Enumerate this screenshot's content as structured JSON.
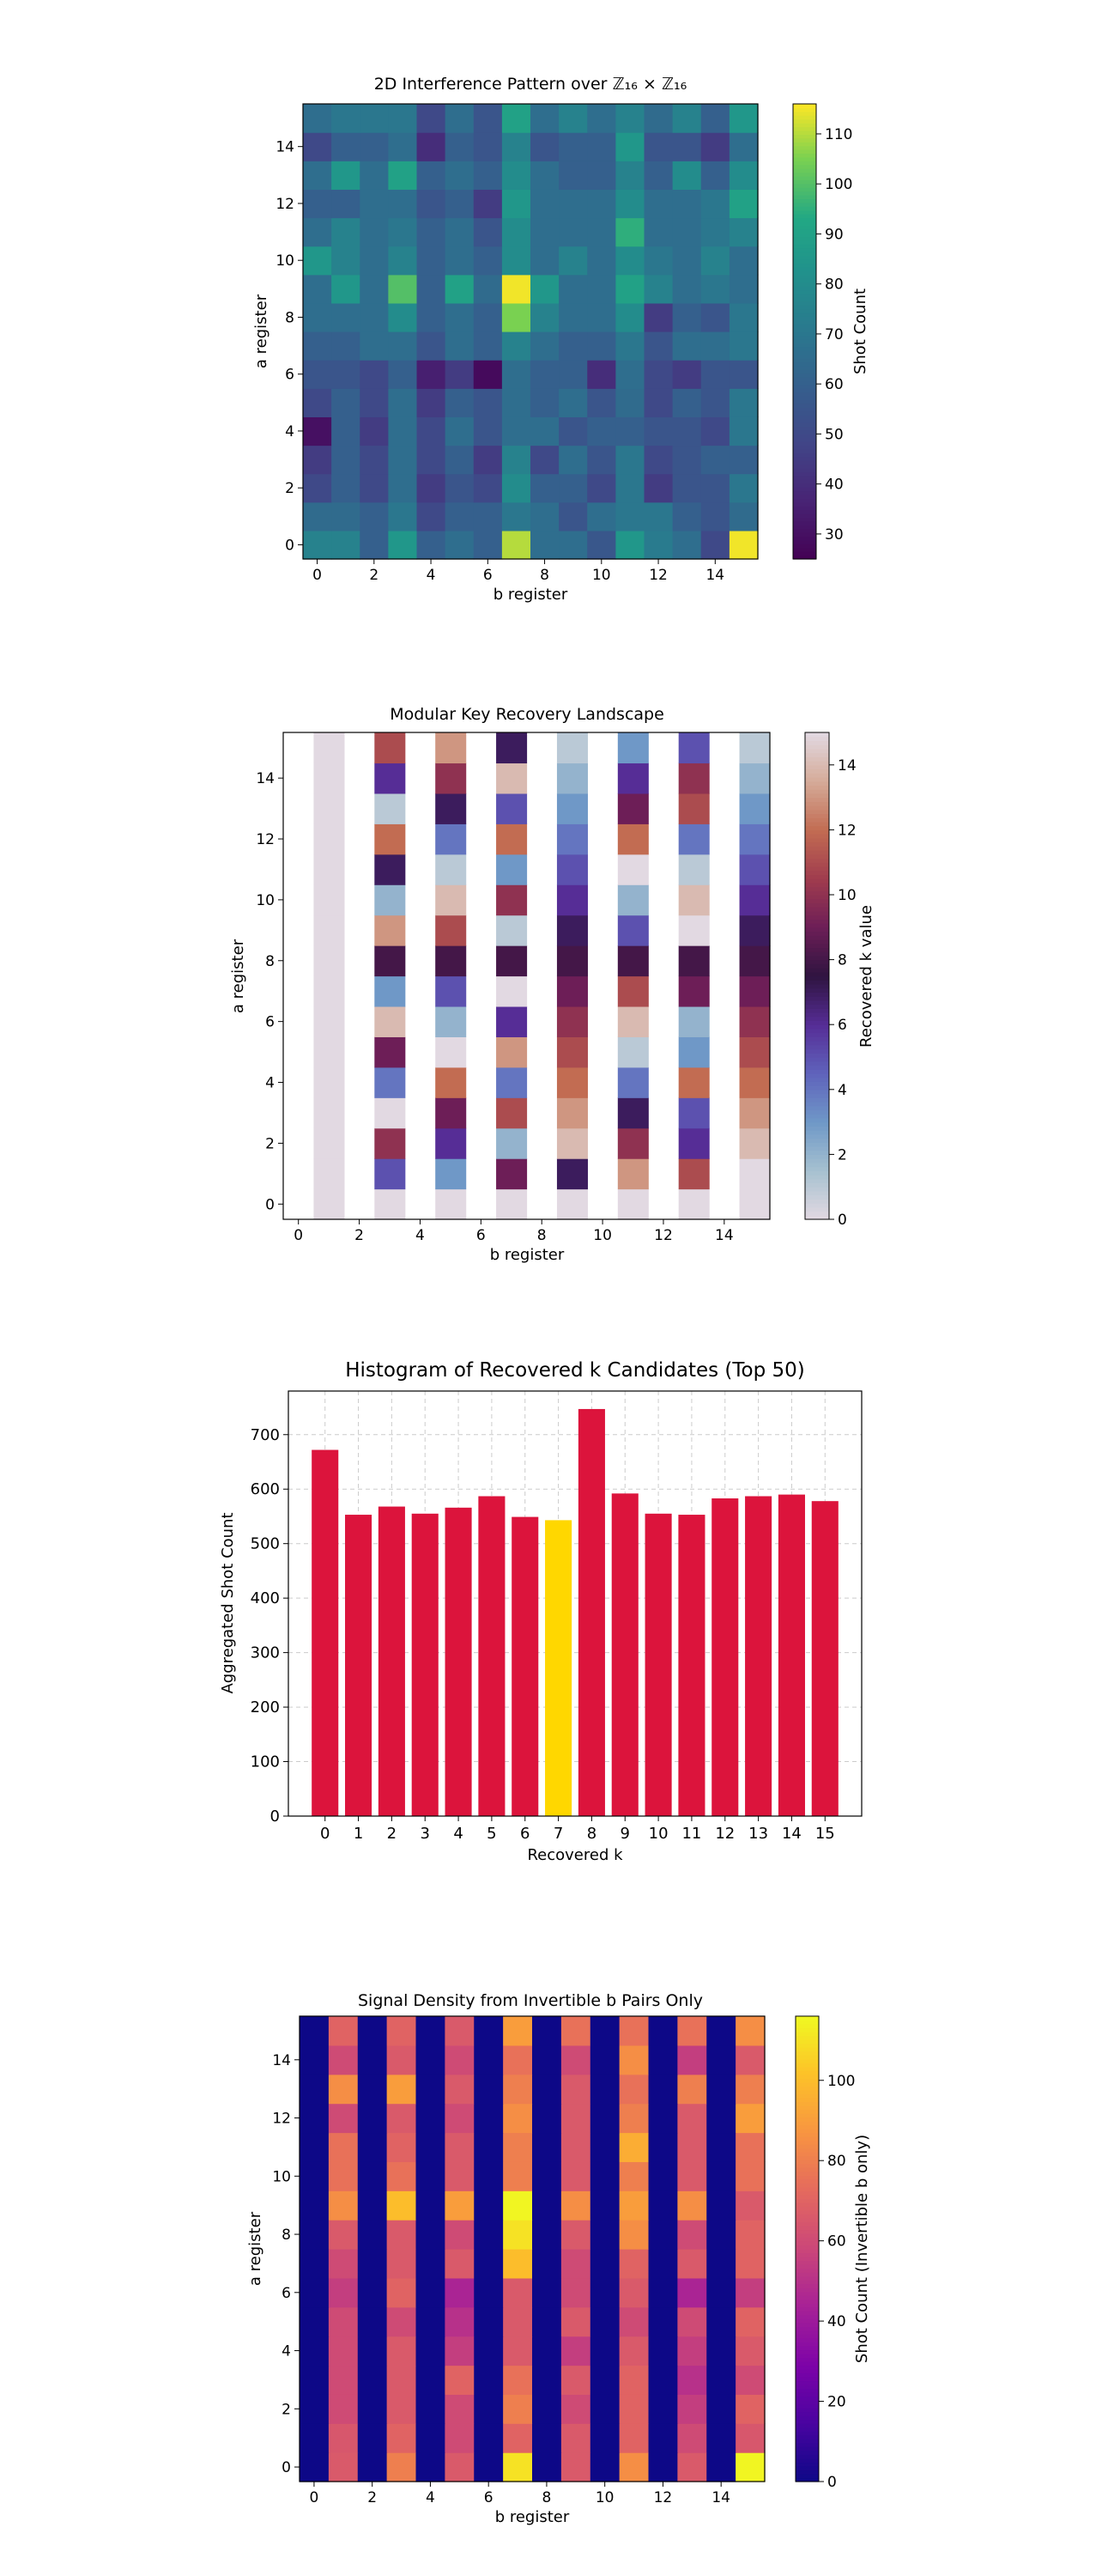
{
  "chart_data": [
    {
      "type": "heatmap",
      "title": "2D Interference Pattern over ℤ₁₆ × ℤ₁₆",
      "xlabel": "b register",
      "ylabel": "a register",
      "colorbar_label": "Shot Count",
      "colormap": "viridis",
      "clim": [
        25,
        116
      ],
      "x_ticks": [
        0,
        2,
        4,
        6,
        8,
        10,
        12,
        14
      ],
      "y_ticks": [
        0,
        2,
        4,
        6,
        8,
        10,
        12,
        14
      ],
      "colorbar_ticks": [
        30,
        40,
        50,
        60,
        70,
        80,
        90,
        100,
        110
      ],
      "z_rows_a0_to_a15": [
        [
          75,
          75,
          60,
          85,
          60,
          66,
          60,
          110,
          66,
          66,
          56,
          85,
          72,
          66,
          50,
          115
        ],
        [
          65,
          65,
          60,
          70,
          50,
          60,
          60,
          70,
          66,
          55,
          66,
          70,
          70,
          60,
          55,
          65
        ],
        [
          50,
          60,
          50,
          66,
          45,
          55,
          50,
          80,
          60,
          60,
          50,
          70,
          45,
          55,
          55,
          70
        ],
        [
          45,
          60,
          50,
          66,
          50,
          60,
          45,
          75,
          50,
          66,
          55,
          70,
          50,
          55,
          60,
          60
        ],
        [
          30,
          60,
          45,
          66,
          50,
          66,
          55,
          66,
          66,
          55,
          60,
          60,
          55,
          55,
          50,
          70
        ],
        [
          50,
          60,
          50,
          66,
          45,
          60,
          55,
          66,
          60,
          66,
          55,
          65,
          50,
          60,
          55,
          70
        ],
        [
          55,
          55,
          50,
          60,
          35,
          45,
          28,
          66,
          60,
          60,
          40,
          66,
          50,
          45,
          55,
          55
        ],
        [
          60,
          60,
          66,
          66,
          55,
          66,
          60,
          75,
          66,
          60,
          60,
          70,
          55,
          66,
          66,
          70
        ],
        [
          66,
          66,
          66,
          80,
          60,
          66,
          60,
          105,
          75,
          66,
          66,
          80,
          45,
          60,
          55,
          70
        ],
        [
          66,
          85,
          66,
          100,
          60,
          90,
          65,
          115,
          85,
          66,
          66,
          90,
          75,
          66,
          70,
          66
        ],
        [
          85,
          75,
          66,
          75,
          60,
          66,
          60,
          80,
          66,
          75,
          66,
          80,
          70,
          66,
          75,
          66
        ],
        [
          66,
          75,
          66,
          70,
          60,
          66,
          55,
          80,
          66,
          66,
          66,
          95,
          66,
          66,
          70,
          75
        ],
        [
          60,
          60,
          66,
          66,
          55,
          60,
          45,
          85,
          66,
          66,
          66,
          80,
          66,
          66,
          70,
          90
        ],
        [
          66,
          85,
          66,
          90,
          60,
          66,
          60,
          80,
          66,
          60,
          60,
          75,
          60,
          80,
          60,
          80
        ],
        [
          50,
          60,
          60,
          66,
          40,
          60,
          55,
          75,
          55,
          60,
          60,
          85,
          55,
          55,
          45,
          66
        ],
        [
          66,
          70,
          70,
          70,
          50,
          66,
          55,
          90,
          66,
          75,
          66,
          75,
          65,
          75,
          60,
          85
        ]
      ]
    },
    {
      "type": "heatmap",
      "title": "Modular Key Recovery Landscape",
      "xlabel": "b register",
      "ylabel": "a register",
      "colorbar_label": "Recovered k value",
      "colormap": "twilight",
      "clim": [
        0,
        15
      ],
      "x_ticks": [
        0,
        2,
        4,
        6,
        8,
        10,
        12,
        14
      ],
      "y_ticks": [
        0,
        2,
        4,
        6,
        8,
        10,
        12,
        14
      ],
      "colorbar_ticks": [
        0,
        2,
        4,
        6,
        8,
        10,
        12,
        14
      ],
      "blank_columns": [
        0,
        2,
        4,
        6,
        8,
        10,
        12,
        14
      ],
      "z_rows_a0_to_a15": [
        [
          null,
          0,
          null,
          0,
          null,
          0,
          null,
          0,
          null,
          0,
          null,
          0,
          null,
          0,
          null,
          0
        ],
        [
          null,
          0,
          null,
          5,
          null,
          3,
          null,
          9,
          null,
          7,
          null,
          13,
          null,
          11,
          null,
          15
        ],
        [
          null,
          0,
          null,
          10,
          null,
          6,
          null,
          2,
          null,
          14,
          null,
          10,
          null,
          6,
          null,
          14
        ],
        [
          null,
          0,
          null,
          15,
          null,
          9,
          null,
          11,
          null,
          13,
          null,
          7,
          null,
          5,
          null,
          13
        ],
        [
          null,
          0,
          null,
          4,
          null,
          12,
          null,
          4,
          null,
          12,
          null,
          4,
          null,
          12,
          null,
          12
        ],
        [
          null,
          0,
          null,
          9,
          null,
          15,
          null,
          13,
          null,
          11,
          null,
          1,
          null,
          3,
          null,
          11
        ],
        [
          null,
          0,
          null,
          14,
          null,
          2,
          null,
          6,
          null,
          10,
          null,
          14,
          null,
          2,
          null,
          10
        ],
        [
          null,
          0,
          null,
          3,
          null,
          5,
          null,
          15,
          null,
          9,
          null,
          11,
          null,
          9,
          null,
          9
        ],
        [
          null,
          0,
          null,
          8,
          null,
          8,
          null,
          8,
          null,
          8,
          null,
          8,
          null,
          8,
          null,
          8
        ],
        [
          null,
          0,
          null,
          13,
          null,
          11,
          null,
          1,
          null,
          7,
          null,
          5,
          null,
          15,
          null,
          7
        ],
        [
          null,
          0,
          null,
          2,
          null,
          14,
          null,
          10,
          null,
          6,
          null,
          2,
          null,
          14,
          null,
          6
        ],
        [
          null,
          0,
          null,
          7,
          null,
          1,
          null,
          3,
          null,
          5,
          null,
          15,
          null,
          1,
          null,
          5
        ],
        [
          null,
          0,
          null,
          12,
          null,
          4,
          null,
          12,
          null,
          4,
          null,
          12,
          null,
          4,
          null,
          4
        ],
        [
          null,
          0,
          null,
          1,
          null,
          7,
          null,
          5,
          null,
          3,
          null,
          9,
          null,
          11,
          null,
          3
        ],
        [
          null,
          0,
          null,
          6,
          null,
          10,
          null,
          14,
          null,
          2,
          null,
          6,
          null,
          10,
          null,
          2
        ],
        [
          null,
          0,
          null,
          11,
          null,
          13,
          null,
          7,
          null,
          1,
          null,
          3,
          null,
          5,
          null,
          1
        ]
      ]
    },
    {
      "type": "bar",
      "title": "Histogram of Recovered k Candidates (Top 50)",
      "xlabel": "Recovered k",
      "ylabel": "Aggregated Shot Count",
      "categories": [
        "0",
        "1",
        "2",
        "3",
        "4",
        "5",
        "6",
        "7",
        "8",
        "9",
        "10",
        "11",
        "12",
        "13",
        "14",
        "15"
      ],
      "values": [
        672,
        553,
        568,
        555,
        566,
        587,
        549,
        543,
        747,
        592,
        555,
        553,
        583,
        587,
        590,
        578
      ],
      "highlight_index": 7,
      "bar_color": "#dc143c",
      "highlight_color": "#ffd700",
      "ylim": [
        0,
        780
      ],
      "y_ticks": [
        0,
        100,
        200,
        300,
        400,
        500,
        600,
        700
      ],
      "grid": true
    },
    {
      "type": "heatmap",
      "title": "Signal Density from Invertible b Pairs Only",
      "xlabel": "b register",
      "ylabel": "a register",
      "colorbar_label": "Shot Count (Invertible b only)",
      "colormap": "plasma",
      "clim": [
        0,
        116
      ],
      "x_ticks": [
        0,
        2,
        4,
        6,
        8,
        10,
        12,
        14
      ],
      "y_ticks": [
        0,
        2,
        4,
        6,
        8,
        10,
        12,
        14
      ],
      "colorbar_ticks": [
        0,
        20,
        40,
        60,
        80,
        100
      ],
      "z_rows_a0_to_a15": [
        [
          0,
          66,
          0,
          80,
          0,
          66,
          0,
          110,
          0,
          66,
          0,
          85,
          0,
          66,
          0,
          115
        ],
        [
          0,
          65,
          0,
          70,
          0,
          60,
          0,
          70,
          0,
          66,
          0,
          70,
          0,
          60,
          0,
          65
        ],
        [
          0,
          60,
          0,
          66,
          0,
          60,
          0,
          80,
          0,
          60,
          0,
          70,
          0,
          55,
          0,
          70
        ],
        [
          0,
          60,
          0,
          66,
          0,
          70,
          0,
          75,
          0,
          66,
          0,
          70,
          0,
          50,
          0,
          60
        ],
        [
          0,
          60,
          0,
          66,
          0,
          55,
          0,
          66,
          0,
          55,
          0,
          66,
          0,
          55,
          0,
          66
        ],
        [
          0,
          60,
          0,
          60,
          0,
          50,
          0,
          66,
          0,
          66,
          0,
          60,
          0,
          60,
          0,
          70
        ],
        [
          0,
          55,
          0,
          70,
          0,
          45,
          0,
          66,
          0,
          60,
          0,
          66,
          0,
          45,
          0,
          55
        ],
        [
          0,
          60,
          0,
          66,
          0,
          66,
          0,
          100,
          0,
          60,
          0,
          70,
          0,
          66,
          0,
          70
        ],
        [
          0,
          66,
          0,
          66,
          0,
          60,
          0,
          110,
          0,
          66,
          0,
          85,
          0,
          60,
          0,
          70
        ],
        [
          0,
          85,
          0,
          100,
          0,
          90,
          0,
          115,
          0,
          85,
          0,
          90,
          0,
          85,
          0,
          66
        ],
        [
          0,
          75,
          0,
          75,
          0,
          66,
          0,
          80,
          0,
          66,
          0,
          80,
          0,
          66,
          0,
          75
        ],
        [
          0,
          75,
          0,
          70,
          0,
          66,
          0,
          80,
          0,
          66,
          0,
          95,
          0,
          66,
          0,
          75
        ],
        [
          0,
          60,
          0,
          66,
          0,
          60,
          0,
          85,
          0,
          66,
          0,
          80,
          0,
          66,
          0,
          90
        ],
        [
          0,
          85,
          0,
          90,
          0,
          66,
          0,
          80,
          0,
          66,
          0,
          75,
          0,
          80,
          0,
          80
        ],
        [
          0,
          60,
          0,
          66,
          0,
          60,
          0,
          75,
          0,
          60,
          0,
          85,
          0,
          55,
          0,
          66
        ],
        [
          0,
          70,
          0,
          70,
          0,
          66,
          0,
          90,
          0,
          75,
          0,
          75,
          0,
          75,
          0,
          85
        ]
      ]
    }
  ]
}
